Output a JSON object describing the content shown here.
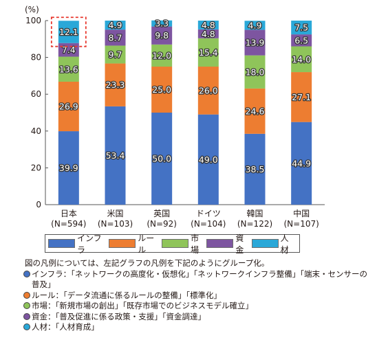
{
  "chart_data": {
    "type": "bar",
    "stacked": true,
    "ylabel": "(%)",
    "ylim": [
      0,
      100
    ],
    "yticks": [
      0,
      20,
      40,
      60,
      80,
      100
    ],
    "categories": [
      {
        "name": "日本",
        "n": "(N=594)"
      },
      {
        "name": "米国",
        "n": "(N=103)"
      },
      {
        "name": "英国",
        "n": "(N=92)"
      },
      {
        "name": "ドイツ",
        "n": "(N=104)"
      },
      {
        "name": "韓国",
        "n": "(N=122)"
      },
      {
        "name": "中国",
        "n": "(N=107)"
      }
    ],
    "series": [
      {
        "name": "インフラ",
        "color": "#4472c4",
        "values": [
          39.9,
          53.4,
          50.0,
          49.0,
          38.5,
          44.9
        ]
      },
      {
        "name": "ルール",
        "color": "#ed7d31",
        "values": [
          26.9,
          23.3,
          25.0,
          26.0,
          24.6,
          27.1
        ]
      },
      {
        "name": "市場",
        "color": "#8fc45a",
        "values": [
          13.6,
          9.7,
          12.0,
          15.4,
          18.0,
          14.0
        ]
      },
      {
        "name": "資金",
        "color": "#7d55a0",
        "values": [
          7.4,
          8.7,
          9.8,
          4.8,
          13.9,
          6.5
        ]
      },
      {
        "name": "人材",
        "color": "#2aa8d8",
        "values": [
          12.1,
          4.9,
          3.3,
          4.8,
          4.9,
          7.5
        ]
      }
    ],
    "highlight": {
      "category_index": 0,
      "series_index": 4,
      "color": "#e8382e"
    },
    "grid": false,
    "legend_position": "bottom"
  },
  "notes": {
    "intro": "図の凡例については、左記グラフの凡例を下記のようにグループ化。",
    "items": [
      {
        "text": "インフラ：「ネットワークの高度化・仮想化」「ネットワークインフラ整備」「端末・センサーの普及」",
        "color": "#4472c4"
      },
      {
        "text": "ルール：「データ流通に係るルールの整備」「標準化」",
        "color": "#ed7d31"
      },
      {
        "text": "市場：「新規市場の創出」「既存市場でのビジネスモデル確立」",
        "color": "#8fc45a"
      },
      {
        "text": "資金：「普及促進に係る政策・支援」「資金調達」",
        "color": "#7d55a0"
      },
      {
        "text": "人材：「人材育成」",
        "color": "#2aa8d8"
      }
    ]
  }
}
